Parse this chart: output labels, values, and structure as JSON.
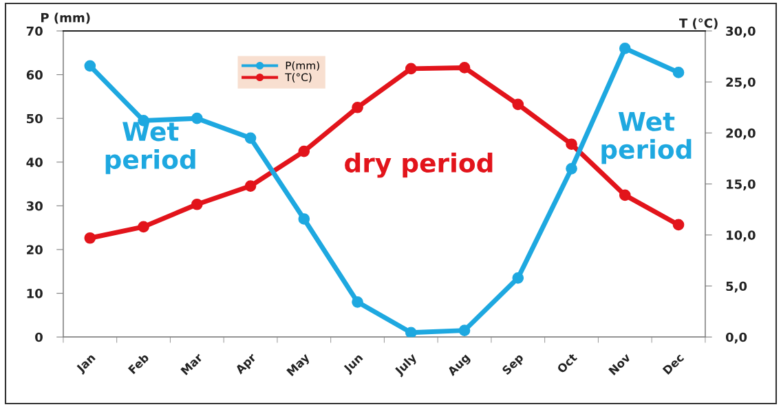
{
  "chart_data": {
    "type": "line",
    "categories": [
      "Jan",
      "Feb",
      "Mar",
      "Apr",
      "May",
      "Jun",
      "July",
      "Aug",
      "Sep",
      "Oct",
      "Nov",
      "Dec"
    ],
    "series": [
      {
        "name": "P(mm)",
        "color": "#1ea8e0",
        "values": [
          62,
          49.5,
          50,
          45.5,
          27,
          8,
          1,
          1.5,
          13.5,
          38.5,
          66,
          60.5
        ]
      },
      {
        "name": "T(°C)",
        "color": "#e2141b",
        "axis": "y2",
        "values": [
          9.7,
          10.8,
          13.0,
          14.8,
          18.2,
          22.5,
          26.3,
          26.4,
          22.8,
          18.9,
          13.9,
          11.0
        ]
      }
    ],
    "ylabel": "P (mm)",
    "y2label": "T (°C)",
    "ylim": [
      0,
      70
    ],
    "yticks": [
      0,
      10,
      20,
      30,
      40,
      50,
      60,
      70
    ],
    "y2lim": [
      0,
      30
    ],
    "y2ticks": [
      {
        "value": 0,
        "label": "0,0"
      },
      {
        "value": 5,
        "label": "5,0"
      },
      {
        "value": 10,
        "label": "10,0"
      },
      {
        "value": 15,
        "label": "15,0"
      },
      {
        "value": 20,
        "label": "20,0"
      },
      {
        "value": 25,
        "label": "25,0"
      },
      {
        "value": 30,
        "label": "30,0"
      }
    ],
    "annotations": [
      "Wet\nperiod",
      "dry period",
      "Wet\nperiod"
    ],
    "legend": "top",
    "marker": "circle",
    "line_style": "solid"
  }
}
